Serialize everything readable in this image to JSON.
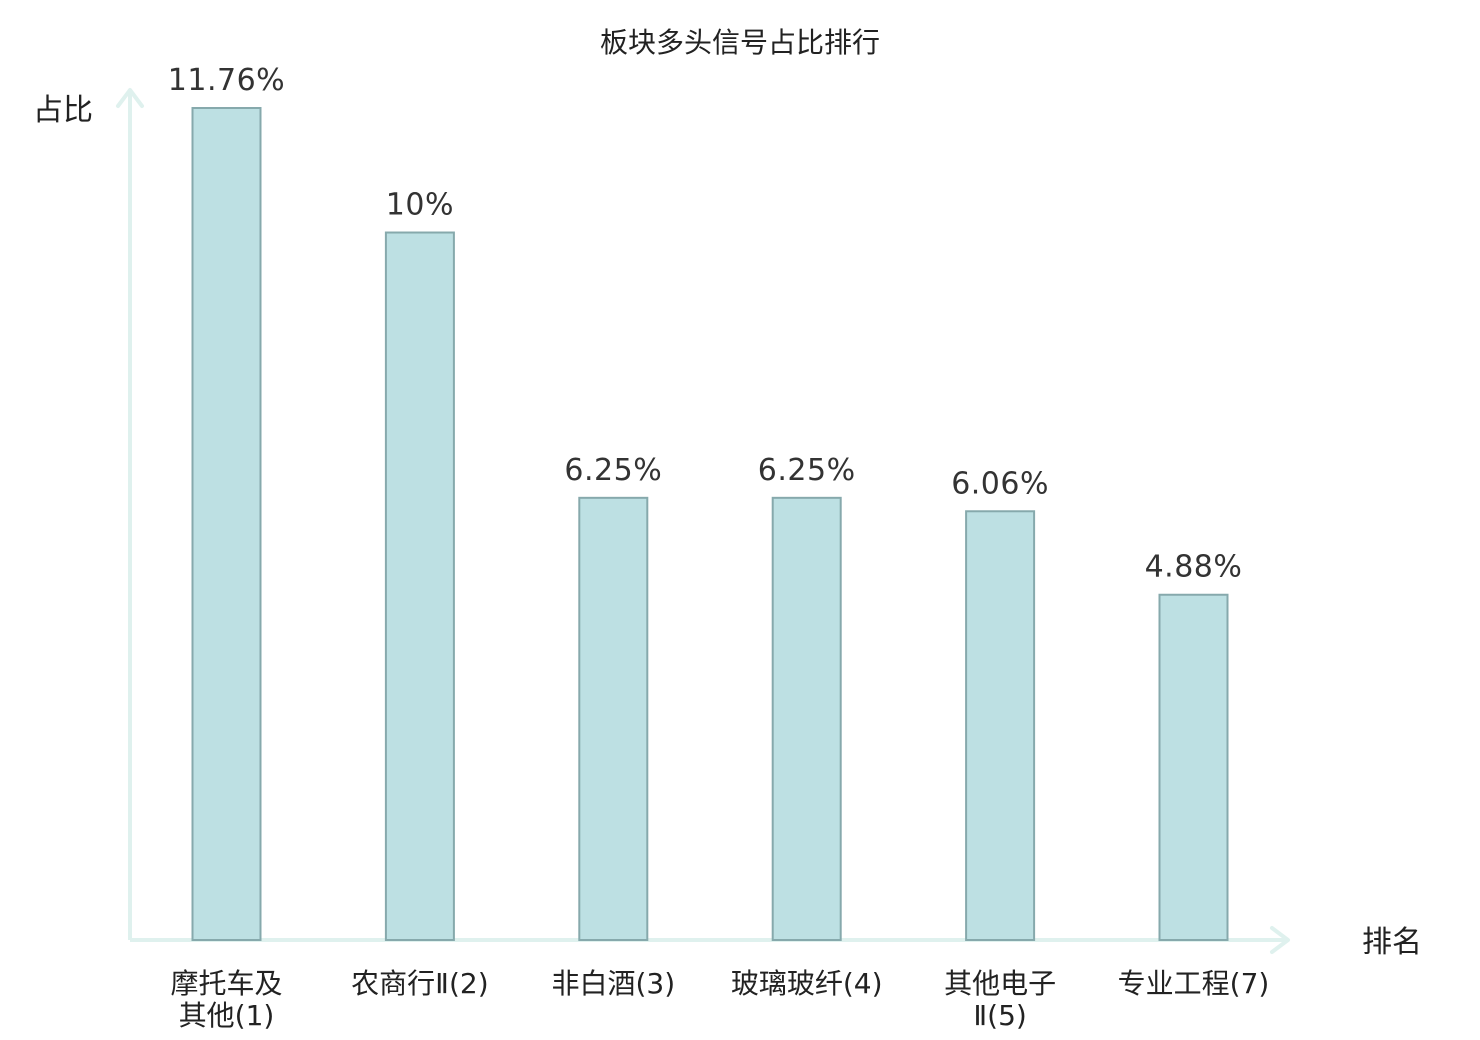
{
  "chart_data": {
    "type": "bar",
    "title": "板块多头信号占比排行",
    "ylabel": "占比",
    "xlabel": "排名",
    "ylim": [
      0,
      12.5
    ],
    "grid": false,
    "categories": [
      [
        "摩托车及",
        "其他(1)"
      ],
      [
        "农商行Ⅱ(2)"
      ],
      [
        "非白酒(3)"
      ],
      [
        "玻璃玻纤(4)"
      ],
      [
        "其他电子",
        "Ⅱ(5)"
      ],
      [
        "专业工程(7)"
      ]
    ],
    "values": [
      11.76,
      10,
      6.25,
      6.25,
      6.06,
      4.88
    ],
    "value_labels": [
      "11.76%",
      "10%",
      "6.25%",
      "6.25%",
      "6.06%",
      "4.88%"
    ],
    "highlight_index": 5,
    "colors": {
      "bar_fill": "#bde0e3",
      "bar_stroke": "#86a9ac",
      "axis": "#dff1ee",
      "highlight_text": "#e02020",
      "text": "#222222"
    }
  }
}
